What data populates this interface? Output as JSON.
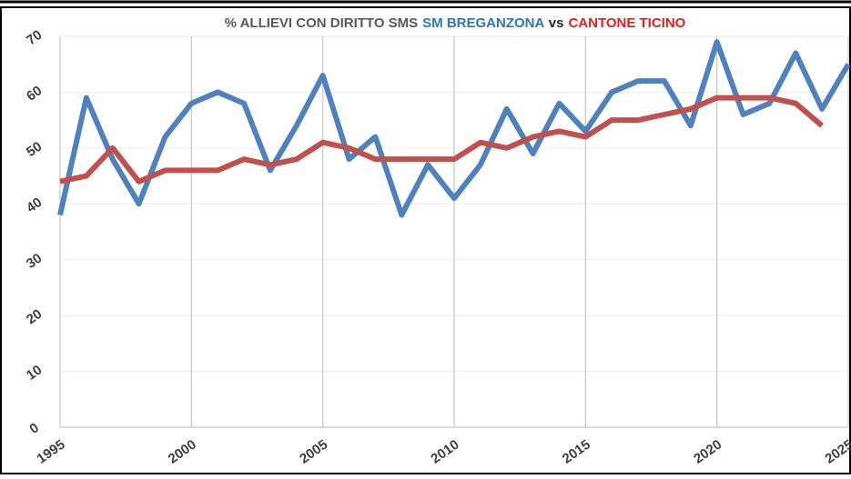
{
  "chart_data": {
    "type": "line",
    "title_parts": [
      {
        "text": "% ALLIEVI CON DIRITTO SMS",
        "color": "#595959"
      },
      {
        "text": "SM BREGANZONA",
        "color": "#2e75b6"
      },
      {
        "text": "vs",
        "color": "#262626"
      },
      {
        "text": "CANTONE TICINO",
        "color": "#e0201f"
      }
    ],
    "x": [
      1995,
      1996,
      1997,
      1998,
      1999,
      2000,
      2001,
      2002,
      2003,
      2004,
      2005,
      2006,
      2007,
      2008,
      2009,
      2010,
      2011,
      2012,
      2013,
      2014,
      2015,
      2016,
      2017,
      2018,
      2019,
      2020,
      2021,
      2022,
      2023,
      2024,
      2025
    ],
    "series": [
      {
        "name": "SM BREGANZONA",
        "color": "#4f81bd",
        "values": [
          38,
          59,
          48,
          40,
          52,
          58,
          60,
          58,
          46,
          54,
          63,
          48,
          52,
          38,
          47,
          41,
          47,
          57,
          49,
          58,
          53,
          60,
          62,
          62,
          54,
          69,
          56,
          58,
          67,
          57,
          65
        ]
      },
      {
        "name": "CANTONE TICINO",
        "color": "#c0504d",
        "values": [
          44,
          45,
          50,
          44,
          46,
          46,
          46,
          48,
          47,
          48,
          51,
          50,
          48,
          48,
          48,
          48,
          51,
          50,
          52,
          53,
          52,
          55,
          55,
          56,
          57,
          59,
          59,
          59,
          58,
          54,
          null
        ]
      }
    ],
    "xlim": [
      1995,
      2025
    ],
    "xticks": [
      1995,
      2000,
      2005,
      2010,
      2015,
      2020,
      2025
    ],
    "ylim": [
      0,
      70
    ],
    "yticks": [
      0,
      10,
      20,
      30,
      40,
      50,
      60,
      70
    ],
    "grid": true
  }
}
